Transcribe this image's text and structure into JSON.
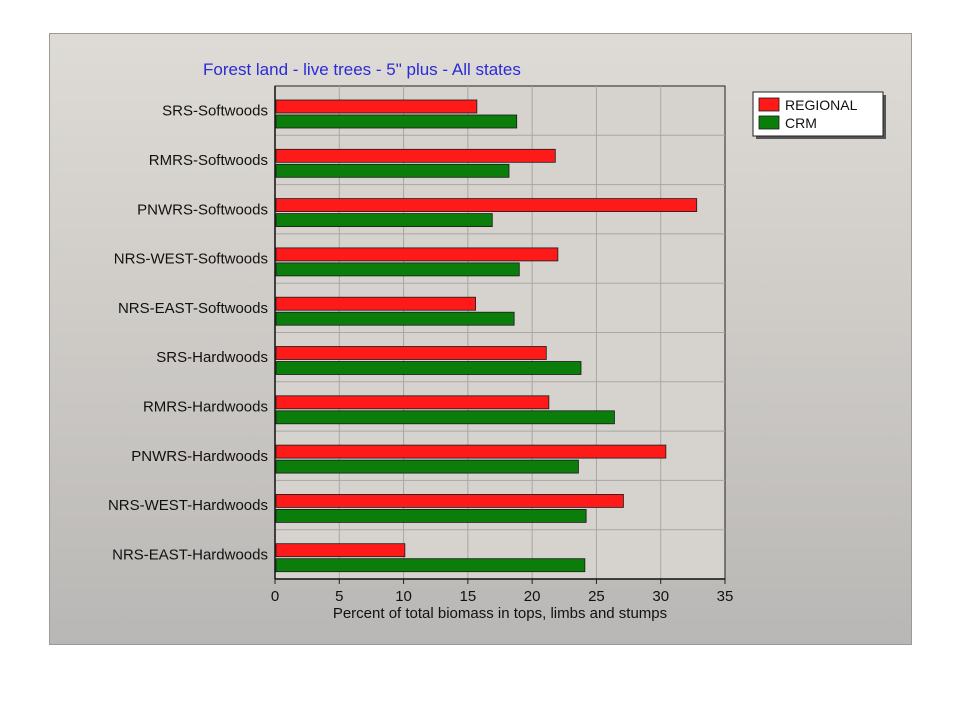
{
  "chart_data": {
    "type": "bar",
    "orientation": "horizontal",
    "title": "Forest land - live trees - 5\" plus - All states",
    "xlabel": "Percent of total biomass in tops, limbs and stumps",
    "ylabel": "",
    "xlim": [
      0,
      35
    ],
    "x_ticks": [
      "0",
      "5",
      "10",
      "15",
      "20",
      "25",
      "30",
      "35"
    ],
    "grid": true,
    "legend_position": "top-right",
    "categories": [
      "SRS-Softwoods",
      "RMRS-Softwoods",
      "PNWRS-Softwoods",
      "NRS-WEST-Softwoods",
      "NRS-EAST-Softwoods",
      "SRS-Hardwoods",
      "RMRS-Hardwoods",
      "PNWRS-Hardwoods",
      "NRS-WEST-Hardwoods",
      "NRS-EAST-Hardwoods"
    ],
    "series": [
      {
        "name": "REGIONAL",
        "color": "#ff1a1a",
        "values": [
          15.7,
          21.8,
          32.8,
          22.0,
          15.6,
          21.1,
          21.3,
          30.4,
          27.1,
          10.1
        ]
      },
      {
        "name": "CRM",
        "color": "#0a7d0a",
        "values": [
          18.8,
          18.2,
          16.9,
          19.0,
          18.6,
          23.8,
          26.4,
          23.6,
          24.2,
          24.1
        ]
      }
    ]
  }
}
